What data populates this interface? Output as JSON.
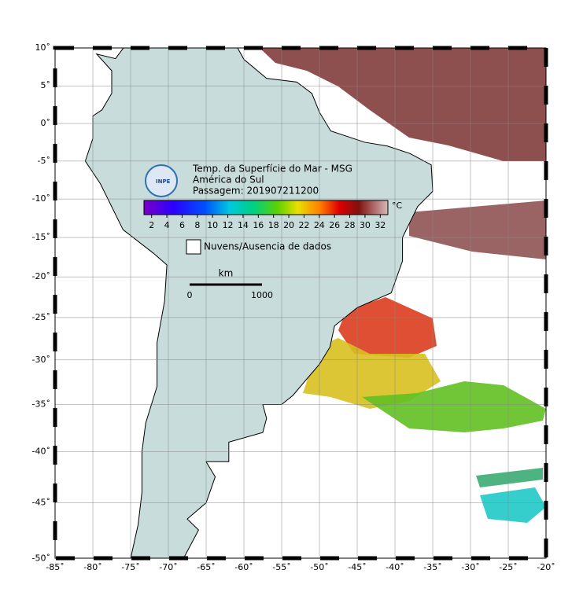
{
  "map": {
    "lon_ticks": [
      {
        "value": -85,
        "label": "-85˚"
      },
      {
        "value": -80,
        "label": "-80˚"
      },
      {
        "value": -75,
        "label": "-75˚"
      },
      {
        "value": -70,
        "label": "-70˚"
      },
      {
        "value": -65,
        "label": "-65˚"
      },
      {
        "value": -60,
        "label": "-60˚"
      },
      {
        "value": -55,
        "label": "-55˚"
      },
      {
        "value": -50,
        "label": "-50˚"
      },
      {
        "value": -45,
        "label": "-45˚"
      },
      {
        "value": -40,
        "label": "-40˚"
      },
      {
        "value": -35,
        "label": "-35˚"
      },
      {
        "value": -30,
        "label": "-30˚"
      },
      {
        "value": -25,
        "label": "-25˚"
      },
      {
        "value": -20,
        "label": "-20˚"
      }
    ],
    "lat_ticks": [
      {
        "value": 10,
        "label": "10˚"
      },
      {
        "value": 5,
        "label": "5˚"
      },
      {
        "value": 0,
        "label": "0˚"
      },
      {
        "value": -5,
        "label": "-5˚"
      },
      {
        "value": -10,
        "label": "-10˚"
      },
      {
        "value": -15,
        "label": "-15˚"
      },
      {
        "value": -20,
        "label": "-20˚"
      },
      {
        "value": -25,
        "label": "-25˚"
      },
      {
        "value": -30,
        "label": "-30˚"
      },
      {
        "value": -35,
        "label": "-35˚"
      },
      {
        "value": -40,
        "label": "-40˚"
      },
      {
        "value": -45,
        "label": "-45˚"
      },
      {
        "value": -50,
        "label": "-50˚"
      }
    ]
  },
  "legend": {
    "logo": "INPE",
    "title_lines": [
      "Temp. da Superfície do Mar - MSG",
      "América do Sul",
      "Passagem: 201907211200"
    ]
  },
  "colorbar": {
    "unit": "°C",
    "lim": [
      1,
      33
    ],
    "ticks": [
      2,
      4,
      6,
      8,
      10,
      12,
      14,
      16,
      18,
      20,
      22,
      24,
      26,
      28,
      30,
      32
    ]
  },
  "clouds_label": "Nuvens/Ausencia de dados",
  "scale": {
    "unit": "km",
    "labels": [
      "0",
      "1000"
    ]
  }
}
